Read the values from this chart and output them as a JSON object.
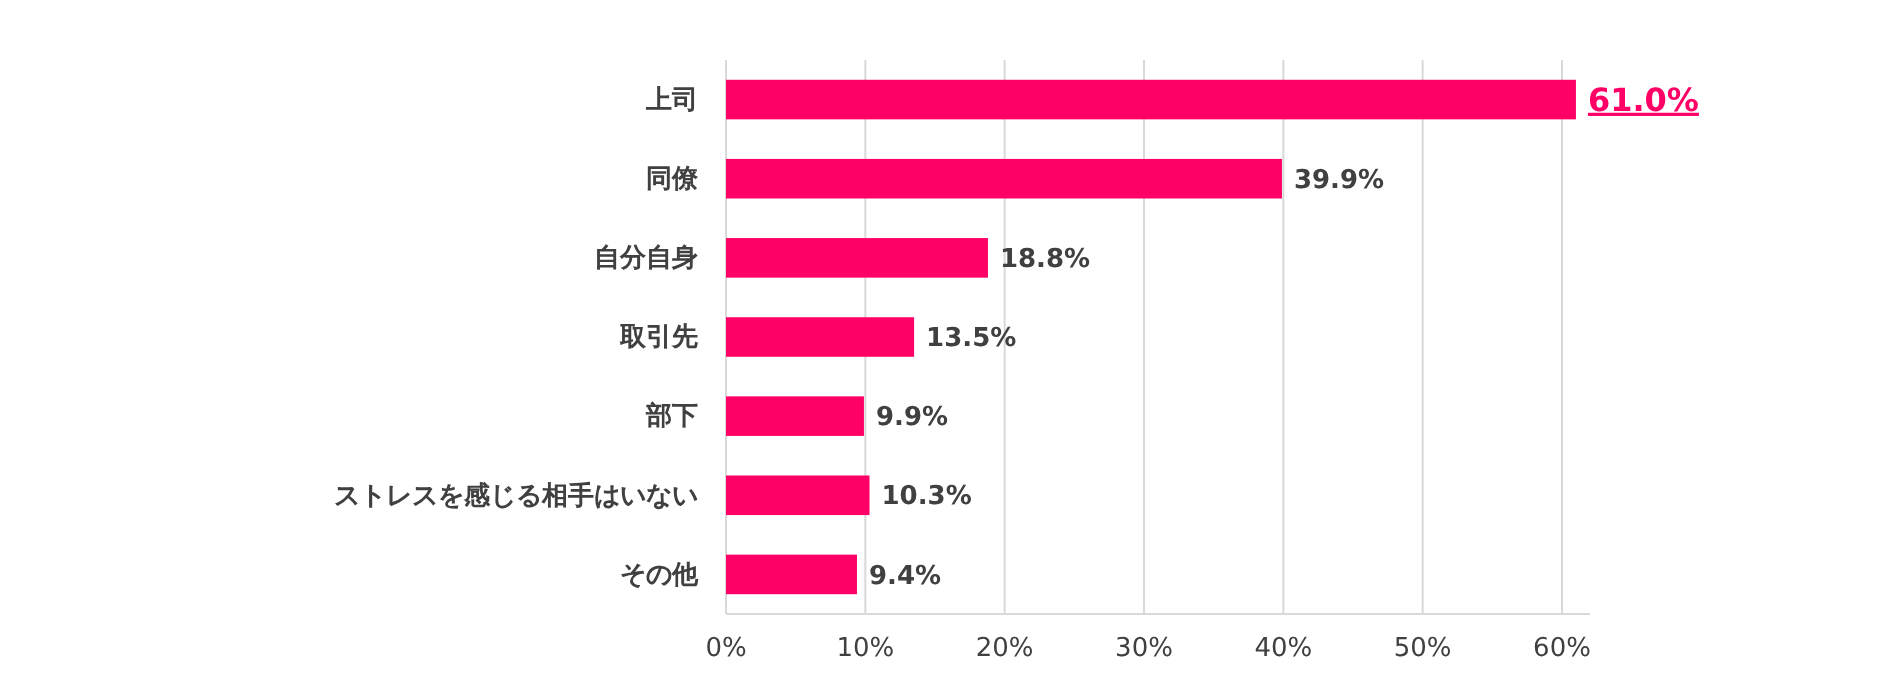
{
  "chart_data": {
    "type": "bar",
    "orientation": "horizontal",
    "categories": [
      "上司",
      "同僚",
      "自分自身",
      "取引先",
      "部下",
      "ストレスを感じる相手はいない",
      "その他"
    ],
    "values": [
      61.0,
      39.9,
      18.8,
      13.5,
      9.9,
      10.3,
      9.4
    ],
    "value_labels": [
      "61.0%",
      "39.9%",
      "18.8%",
      "13.5%",
      "9.9%",
      "10.3%",
      "9.4%"
    ],
    "color": "#ff0066",
    "xlim": [
      0,
      62
    ],
    "xticks": [
      {
        "value": 0,
        "label": "0%"
      },
      {
        "value": 10,
        "label": "10%"
      },
      {
        "value": 20,
        "label": "20%"
      },
      {
        "value": 30,
        "label": "30%"
      },
      {
        "value": 40,
        "label": "40%"
      },
      {
        "value": 50,
        "label": "50%"
      },
      {
        "value": 60,
        "label": "60%"
      }
    ],
    "grid": "x"
  }
}
